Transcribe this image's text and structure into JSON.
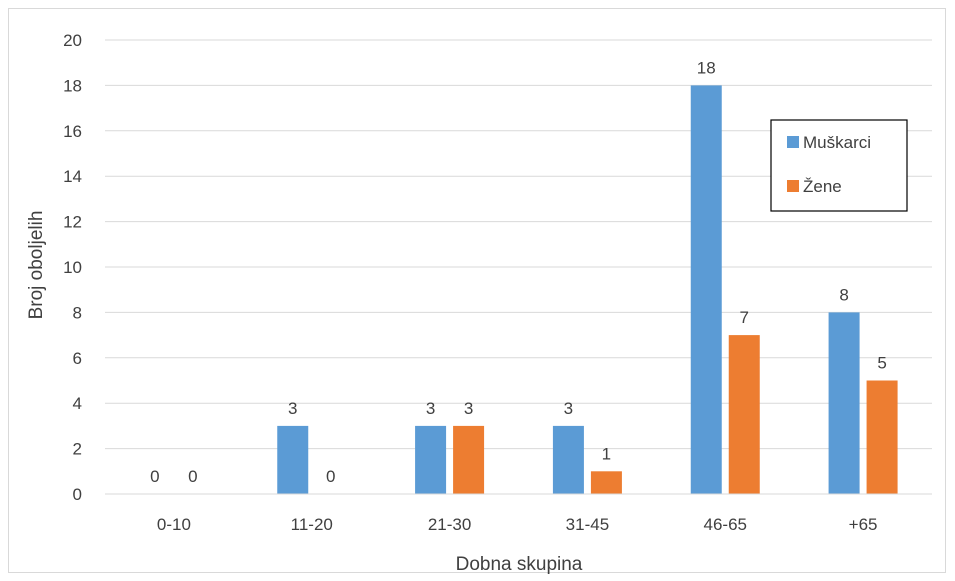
{
  "chart_data": {
    "type": "bar",
    "title": "",
    "xlabel": "Dobna skupina",
    "ylabel": "Broj oboljelih",
    "categories": [
      "0-10",
      "11-20",
      "21-30",
      "31-45",
      "46-65",
      "+65"
    ],
    "ylim": [
      0,
      20
    ],
    "yticks": [
      "0",
      "2",
      "4",
      "6",
      "8",
      "10",
      "12",
      "14",
      "16",
      "18",
      "20"
    ],
    "grid": true,
    "legend_position": "right",
    "series": [
      {
        "name": "Muškarci",
        "values": [
          0,
          3,
          3,
          3,
          18,
          8
        ],
        "labels": [
          "0",
          "3",
          "3",
          "3",
          "18",
          "8"
        ],
        "color": "#5b9bd5"
      },
      {
        "name": "Žene",
        "values": [
          0,
          0,
          3,
          1,
          7,
          5
        ],
        "labels": [
          "0",
          "0",
          "3",
          "1",
          "7",
          "5"
        ],
        "color": "#ed7d31"
      }
    ]
  }
}
